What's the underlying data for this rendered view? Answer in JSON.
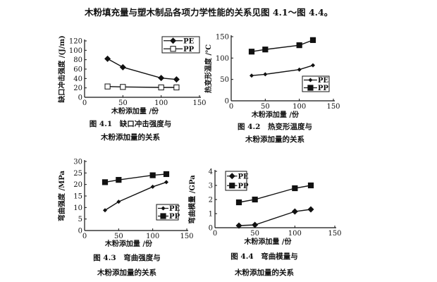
{
  "header": "木粉填充量与塑木制品各项力学性能的关系见图 4.1～图 4.4。",
  "chart_data": [
    {
      "type": "line",
      "caption": [
        "图 4.1　缺口冲击强度与",
        "木粉添加量的关系"
      ],
      "xlabel": "木粉添加量 /份",
      "ylabel": "缺口冲击强度 /(J/m)",
      "xlim": [
        0,
        150
      ],
      "xticks": [
        0,
        50,
        100,
        150
      ],
      "ylim": [
        0,
        120
      ],
      "yticks": [
        0,
        20,
        40,
        60,
        80,
        100,
        120
      ],
      "legend": "top-right",
      "x": [
        30,
        50,
        100,
        120
      ],
      "series": [
        {
          "name": "PE",
          "marker": "diamond-filled",
          "values": [
            82,
            64,
            41,
            38
          ]
        },
        {
          "name": "PP",
          "marker": "square-open",
          "values": [
            23,
            22,
            21,
            21
          ]
        }
      ]
    },
    {
      "type": "line",
      "caption": [
        "图 4.2　热变形温度与",
        "木粉添加量的关系"
      ],
      "xlabel": "木粉添加量 /份",
      "ylabel": "热变形温度 /℃",
      "xlim": [
        0,
        150
      ],
      "xticks": [
        0,
        50,
        100,
        150
      ],
      "ylim": [
        0,
        150
      ],
      "yticks": [
        0,
        50,
        100,
        150
      ],
      "legend": "bottom-right",
      "x": [
        30,
        50,
        100,
        120
      ],
      "series": [
        {
          "name": "PE",
          "marker": "diamond-small",
          "values": [
            59,
            62,
            73,
            83
          ]
        },
        {
          "name": "PP",
          "marker": "square-filled",
          "values": [
            115,
            120,
            130,
            142
          ]
        }
      ]
    },
    {
      "type": "line",
      "caption": [
        "图 4.3　弯曲强度与",
        "木粉添加量的关系"
      ],
      "xlabel": "木粉添加量 /份",
      "ylabel": "弯曲强度 /MPa",
      "xlim": [
        0,
        150
      ],
      "xticks": [
        0,
        50,
        100,
        150
      ],
      "ylim": [
        0,
        30
      ],
      "yticks": [
        0,
        5,
        10,
        15,
        20,
        25,
        30
      ],
      "legend": "bottom-right",
      "x": [
        30,
        50,
        100,
        120
      ],
      "series": [
        {
          "name": "PE",
          "marker": "diamond-small",
          "values": [
            8.8,
            12.5,
            19,
            21
          ]
        },
        {
          "name": "PP",
          "marker": "square-filled",
          "values": [
            21,
            22,
            24,
            24.5
          ]
        }
      ]
    },
    {
      "type": "line",
      "caption": [
        "图 4.4　弯曲模量与",
        "木粉添加量的关系"
      ],
      "xlabel": "木粉添加量 /份",
      "ylabel": "弯曲模量 /GPa",
      "xlim": [
        0,
        150
      ],
      "xticks": [
        0,
        50,
        100,
        150
      ],
      "ylim": [
        0,
        4
      ],
      "yticks": [
        0,
        1,
        2,
        3,
        4
      ],
      "legend": "top-left",
      "x": [
        30,
        50,
        100,
        120
      ],
      "series": [
        {
          "name": "PE",
          "marker": "diamond-filled",
          "values": [
            0.15,
            0.2,
            1.15,
            1.3
          ]
        },
        {
          "name": "PP",
          "marker": "square-filled",
          "values": [
            1.8,
            2.0,
            2.8,
            3.0
          ]
        }
      ]
    }
  ]
}
